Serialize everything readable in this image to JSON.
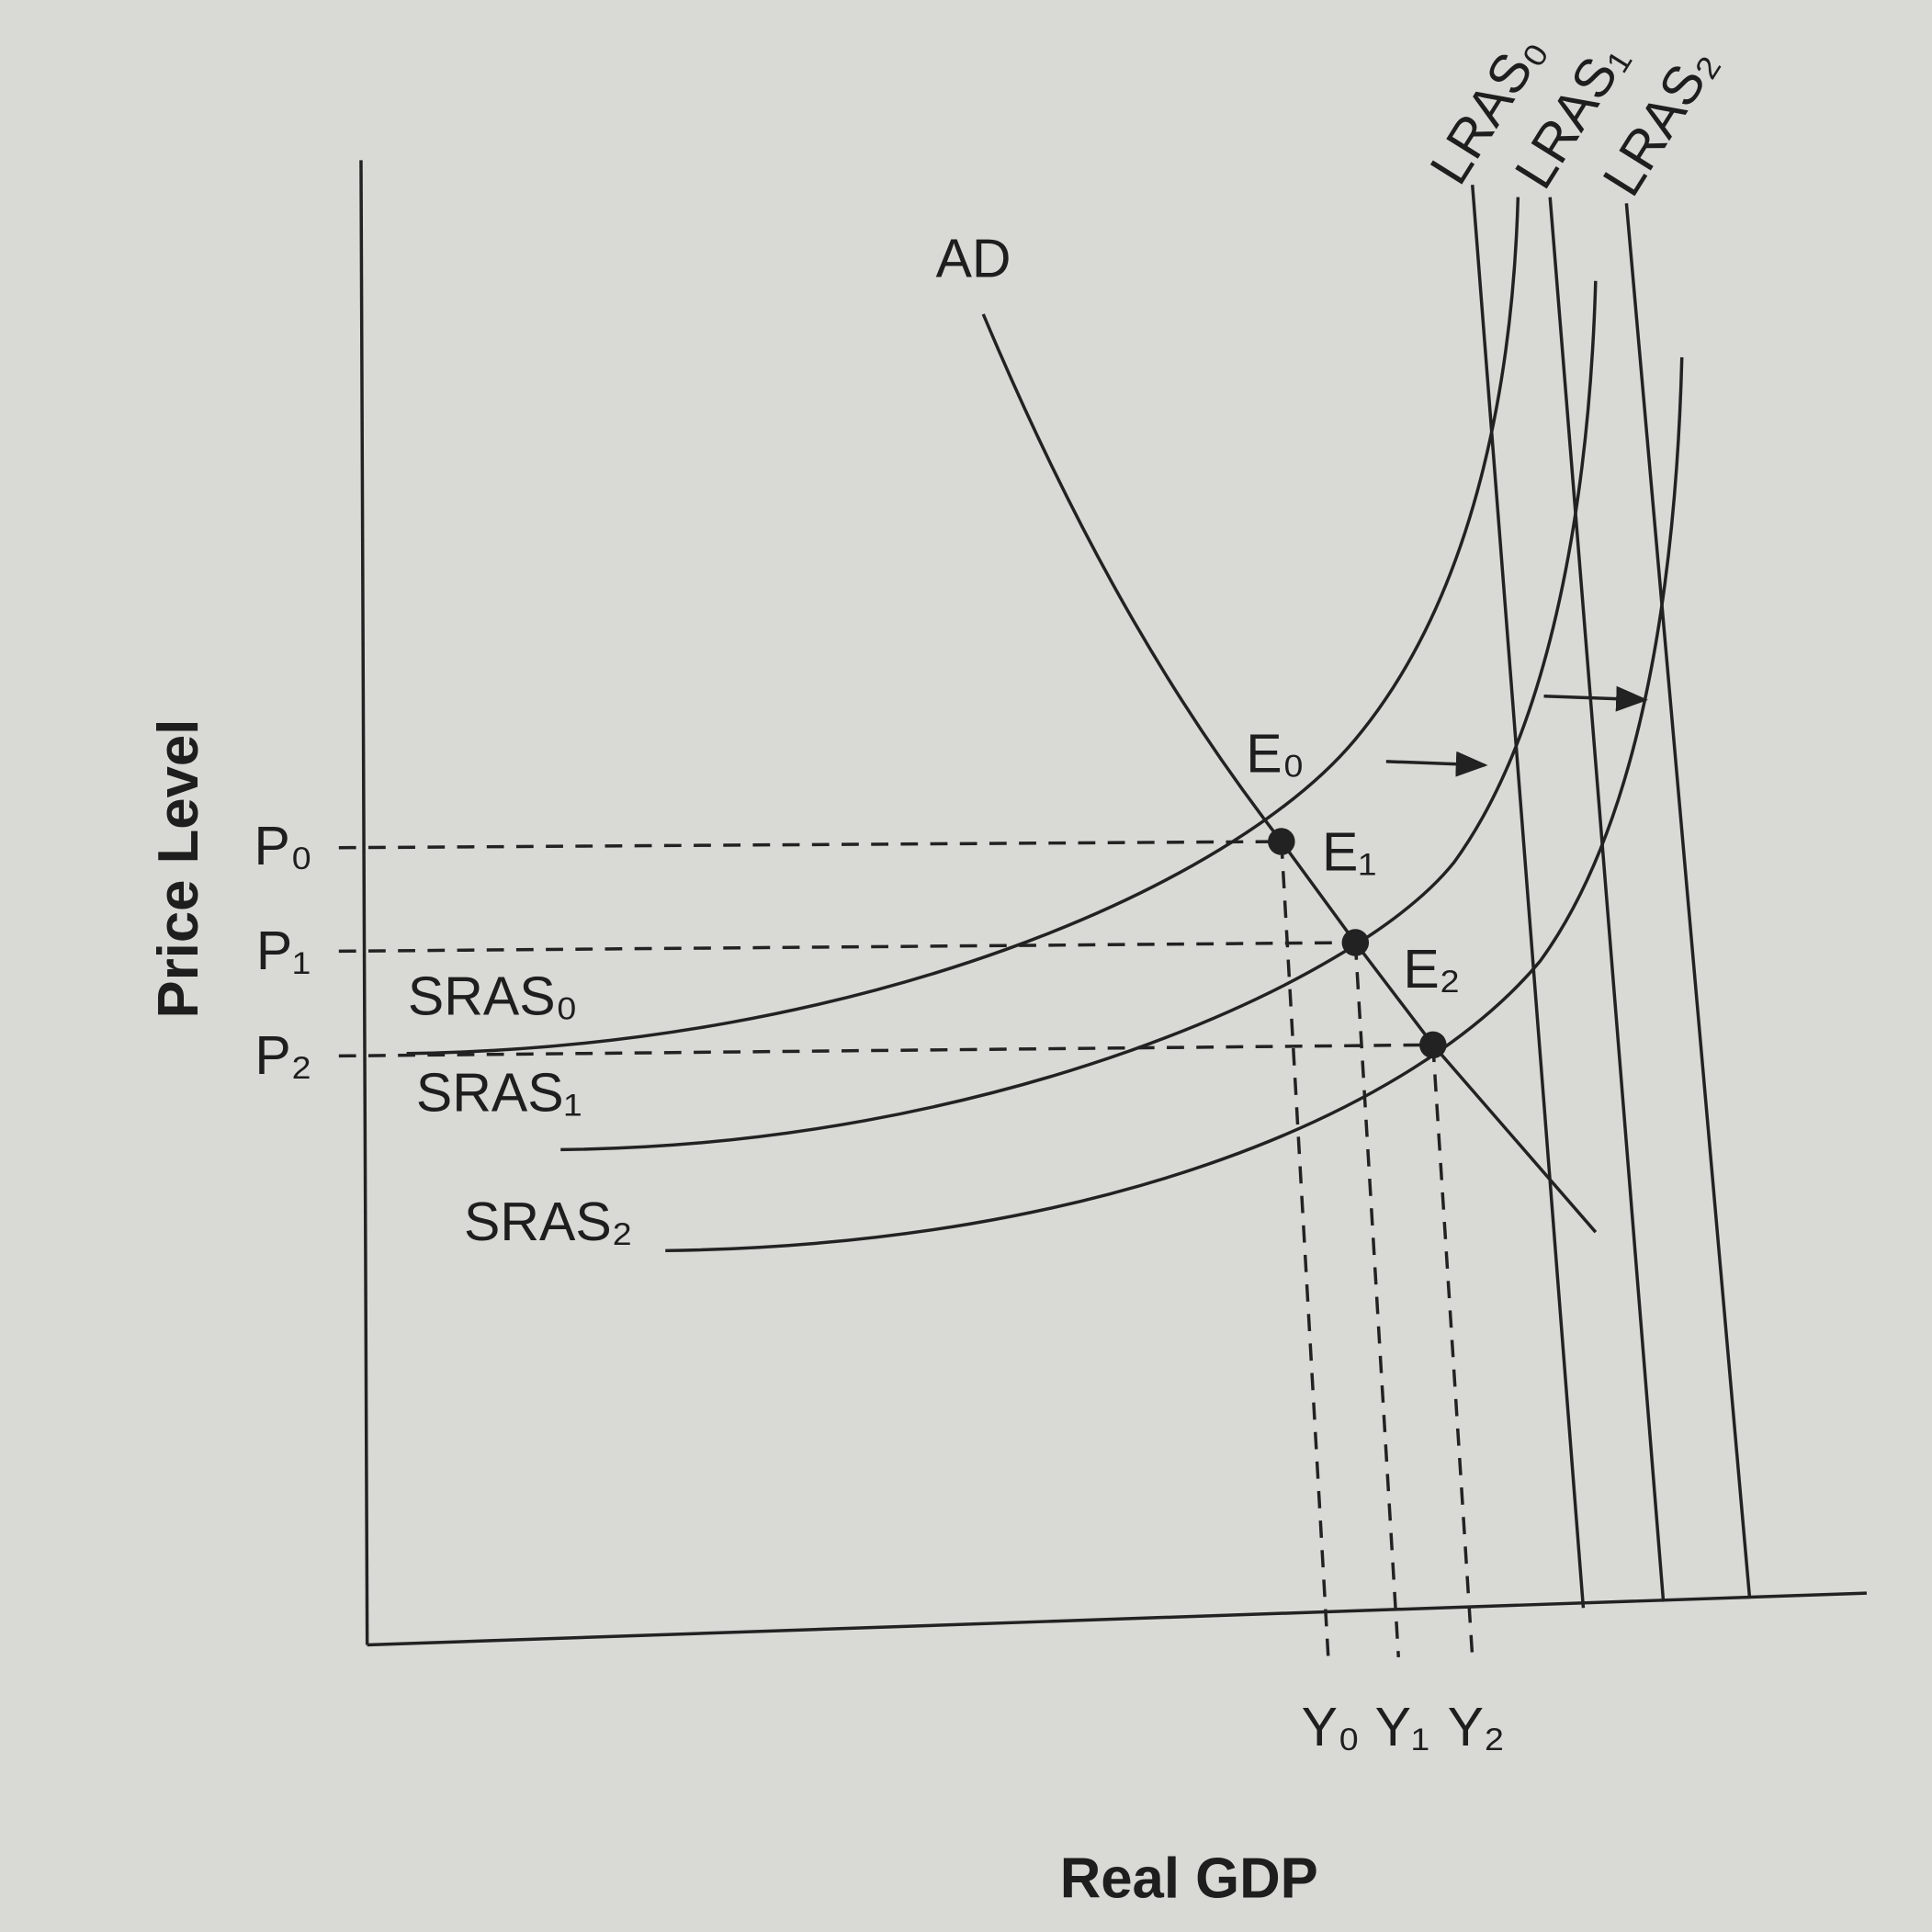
{
  "diagram": {
    "curves": {
      "ad": "AD",
      "sras0": "SRAS₀",
      "sras1": "SRAS₁",
      "sras2": "SRAS₂",
      "lras0": "LRAS₀",
      "lras1": "LRAS₁",
      "lras2": "LRAS₂"
    },
    "equilibria": [
      "E₀",
      "E₁",
      "E₂"
    ],
    "price_levels": [
      "P₀",
      "P₁",
      "P₂"
    ],
    "outputs": [
      "Y₀",
      "Y₁",
      "Y₂"
    ],
    "x_axis_label": "Real GDP",
    "y_axis_label": "Price Level"
  }
}
